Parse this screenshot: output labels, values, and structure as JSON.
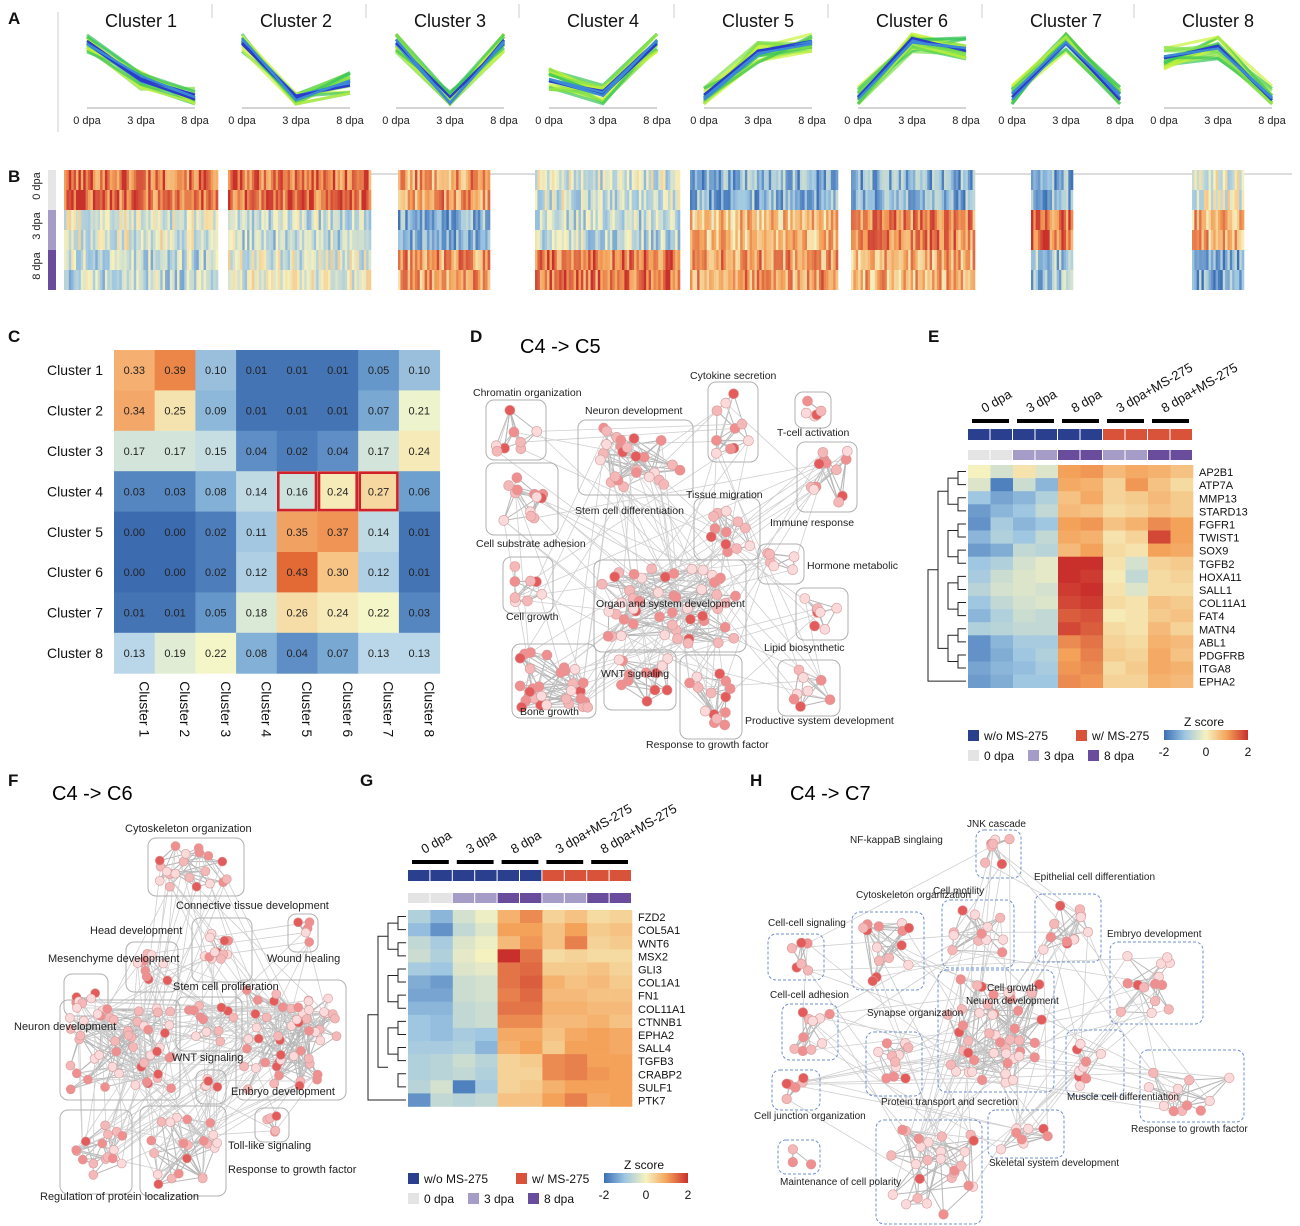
{
  "panel_letters": {
    "A": "A",
    "B": "B",
    "C": "C",
    "D": "D",
    "E": "E",
    "F": "F",
    "G": "G",
    "H": "H"
  },
  "panelA": {
    "timepoints": [
      "0 dpa",
      "3 dpa",
      "8 dpa"
    ],
    "clusters": [
      {
        "name": "Cluster 1",
        "profile": [
          0.9,
          0.35,
          0.1
        ]
      },
      {
        "name": "Cluster 2",
        "profile": [
          0.9,
          0.1,
          0.3
        ]
      },
      {
        "name": "Cluster 3",
        "profile": [
          0.9,
          0.05,
          0.9
        ]
      },
      {
        "name": "Cluster 4",
        "profile": [
          0.35,
          0.15,
          0.9
        ]
      },
      {
        "name": "Cluster 5",
        "profile": [
          0.1,
          0.75,
          0.9
        ]
      },
      {
        "name": "Cluster 6",
        "profile": [
          0.1,
          0.9,
          0.8
        ]
      },
      {
        "name": "Cluster 7",
        "profile": [
          0.1,
          0.9,
          0.1
        ]
      },
      {
        "name": "Cluster 8",
        "profile": [
          0.65,
          0.8,
          0.1
        ]
      }
    ]
  },
  "panelB": {
    "row_labels": [
      "0 dpa",
      "3 dpa",
      "8 dpa"
    ],
    "row_colors": [
      "#e6e6e6",
      "#a59cc8",
      "#6a4c9c"
    ]
  },
  "chart_data": [
    {
      "type": "heatmap",
      "title": "",
      "rows": [
        "Cluster 1",
        "Cluster 2",
        "Cluster 3",
        "Cluster 4",
        "Cluster 5",
        "Cluster 6",
        "Cluster 7",
        "Cluster 8"
      ],
      "columns": [
        "Cluster 1",
        "Cluster 2",
        "Cluster 3",
        "Cluster 4",
        "Cluster 5",
        "Cluster 6",
        "Cluster 7",
        "Cluster 8"
      ],
      "values": [
        [
          0.33,
          0.39,
          0.1,
          0.01,
          0.01,
          0.01,
          0.05,
          0.1
        ],
        [
          0.34,
          0.25,
          0.09,
          0.01,
          0.01,
          0.01,
          0.07,
          0.21
        ],
        [
          0.17,
          0.17,
          0.15,
          0.04,
          0.02,
          0.04,
          0.17,
          0.24
        ],
        [
          0.03,
          0.03,
          0.08,
          0.14,
          0.16,
          0.24,
          0.27,
          0.06
        ],
        [
          0.0,
          0.0,
          0.02,
          0.11,
          0.35,
          0.37,
          0.14,
          0.01
        ],
        [
          0.0,
          0.0,
          0.02,
          0.12,
          0.43,
          0.3,
          0.12,
          0.01
        ],
        [
          0.01,
          0.01,
          0.05,
          0.18,
          0.26,
          0.24,
          0.22,
          0.03
        ],
        [
          0.13,
          0.19,
          0.22,
          0.08,
          0.04,
          0.07,
          0.13,
          0.13
        ]
      ],
      "labels": [
        [
          "0.33",
          "0.39",
          "0.10",
          "0.01",
          "0.01",
          "0.01",
          "0.05",
          "0.10"
        ],
        [
          "0.34",
          "0.25",
          "0.09",
          "0.01",
          "0.01",
          "0.01",
          "0.07",
          "0.21"
        ],
        [
          "0.17",
          "0.17",
          "0.15",
          "0.04",
          "0.02",
          "0.04",
          "0.17",
          "0.24"
        ],
        [
          "0.03",
          "0.03",
          "0.08",
          "0.14",
          "0.16",
          "0.24",
          "0.27",
          "0.06"
        ],
        [
          "0.00",
          "0.00",
          "0.02",
          "0.11",
          "0.35",
          "0.37",
          "0.14",
          "0.01"
        ],
        [
          "0.00",
          "0.00",
          "0.02",
          "0.12",
          "0.43",
          "0.30",
          "0.12",
          "0.01"
        ],
        [
          "0.01",
          "0.01",
          "0.05",
          "0.18",
          "0.26",
          "0.24",
          "0.22",
          "0.03"
        ],
        [
          "0.13",
          "0.19",
          "0.22",
          "0.08",
          "0.04",
          "0.07",
          "0.13",
          "0.13"
        ]
      ],
      "highlighted": [
        [
          3,
          4
        ],
        [
          3,
          5
        ],
        [
          3,
          6
        ]
      ]
    }
  ],
  "panelD": {
    "title": "C4 -> C5",
    "labels": [
      "Chromatin organization",
      "Neuron development",
      "Cytokine secretion",
      "T-cell activation",
      "Stem cell differentiation",
      "Tissue migration",
      "Immune response",
      "Cell substrate adhesion",
      "Hormone metabolic",
      "Cell growth",
      "Organ and system development",
      "Lipid biosynthetic",
      "WNT signaling",
      "Bone growth",
      "Productive system development",
      "Response to growth factor"
    ]
  },
  "panelE": {
    "column_groups": [
      "0 dpa",
      "3 dpa",
      "8 dpa",
      "3 dpa+MS-275",
      "8 dpa+MS-275"
    ],
    "genes": [
      "AP2B1",
      "ATP7A",
      "MMP13",
      "STARD13",
      "FGFR1",
      "TWIST1",
      "SOX9",
      "TGFB2",
      "HOXA11",
      "SALL1",
      "COL11A1",
      "FAT4",
      "MATN4",
      "ABL1",
      "PDGFRB",
      "ITGA8",
      "EPHA2"
    ],
    "values": [
      [
        0.0,
        -0.4,
        0.2,
        -0.3,
        1.0,
        1.1,
        0.7,
        0.9,
        0.8,
        0.6
      ],
      [
        -0.3,
        -1.8,
        -0.5,
        -1.2,
        0.9,
        0.8,
        0.4,
        1.1,
        0.6,
        0.3
      ],
      [
        -1.0,
        -1.4,
        -1.2,
        -0.8,
        0.6,
        0.9,
        0.4,
        0.5,
        0.7,
        0.5
      ],
      [
        -1.5,
        -1.2,
        -1.0,
        -0.6,
        0.7,
        0.6,
        0.3,
        0.4,
        0.6,
        0.5
      ],
      [
        -1.6,
        -0.9,
        -1.2,
        -1.0,
        1.0,
        1.1,
        0.6,
        0.8,
        1.2,
        1.0
      ],
      [
        -1.2,
        -0.8,
        -1.0,
        -0.6,
        0.9,
        0.8,
        0.2,
        0.4,
        1.8,
        1.0
      ],
      [
        -1.5,
        -1.3,
        -0.6,
        -0.7,
        0.7,
        1.0,
        0.3,
        0.2,
        1.0,
        0.9
      ],
      [
        -1.0,
        -0.8,
        -0.4,
        -0.2,
        2.0,
        2.0,
        0.2,
        -0.4,
        0.4,
        0.5
      ],
      [
        -0.9,
        -0.5,
        -0.3,
        -0.2,
        2.0,
        1.9,
        0.1,
        -0.6,
        0.3,
        0.4
      ],
      [
        -0.7,
        -0.4,
        -0.3,
        -0.4,
        1.9,
        2.0,
        0.2,
        -0.3,
        0.3,
        0.3
      ],
      [
        -1.0,
        -0.6,
        -0.4,
        -0.3,
        1.8,
        1.9,
        0.3,
        0.2,
        0.6,
        0.5
      ],
      [
        -1.2,
        -0.8,
        -0.5,
        -0.6,
        1.6,
        1.7,
        0.1,
        0.2,
        0.5,
        0.6
      ],
      [
        -0.8,
        -0.7,
        -0.6,
        -0.6,
        1.8,
        1.6,
        0.3,
        0.2,
        0.7,
        0.4
      ],
      [
        -1.6,
        -1.2,
        -0.9,
        -0.9,
        1.2,
        1.4,
        0.4,
        0.3,
        0.8,
        0.7
      ],
      [
        -1.6,
        -1.3,
        -1.0,
        -0.8,
        1.0,
        1.3,
        0.5,
        0.4,
        0.9,
        0.6
      ],
      [
        -1.4,
        -1.2,
        -1.1,
        -0.9,
        1.1,
        1.2,
        0.3,
        0.5,
        0.9,
        0.8
      ],
      [
        -1.5,
        -1.3,
        -1.0,
        -1.0,
        1.2,
        1.1,
        0.4,
        0.4,
        0.8,
        0.7
      ]
    ],
    "legend": {
      "without": "w/o MS-275",
      "with": "w/ MS-275",
      "t0": "0 dpa",
      "t3": "3 dpa",
      "t8": "8 dpa",
      "zscore": "Z score",
      "ticks": [
        "-2",
        "0",
        "2"
      ]
    }
  },
  "panelF": {
    "title": "C4 -> C6",
    "labels": [
      "Cytoskeleton organization",
      "Connective tissue development",
      "Head development",
      "Wound healing",
      "Mesenchyme development",
      "Stem cell proliferation",
      "Neuron development",
      "WNT signaling",
      "Embryo development",
      "Toll-like signaling",
      "Response to growth factor",
      "Regulation of protein localization"
    ]
  },
  "panelG": {
    "column_groups": [
      "0 dpa",
      "3 dpa",
      "8 dpa",
      "3 dpa+MS-275",
      "8 dpa+MS-275"
    ],
    "genes": [
      "FZD2",
      "COL5A1",
      "WNT6",
      "MSX2",
      "GLI3",
      "COL1A1",
      "FN1",
      "COL11A1",
      "CTNNB1",
      "EPHA2",
      "SALL4",
      "TGFB3",
      "CRABP2",
      "SULF1",
      "PTK7"
    ],
    "values": [
      [
        -0.8,
        -1.2,
        -0.4,
        -0.1,
        0.8,
        1.2,
        0.4,
        0.6,
        0.3,
        0.4
      ],
      [
        -1.1,
        -1.6,
        -0.6,
        -0.3,
        1.0,
        1.0,
        0.6,
        1.0,
        0.5,
        0.6
      ],
      [
        -0.6,
        -0.9,
        -0.3,
        -0.1,
        0.7,
        1.1,
        0.6,
        1.3,
        0.4,
        0.5
      ],
      [
        -0.5,
        -0.8,
        -0.2,
        0.0,
        2.0,
        1.4,
        0.3,
        0.4,
        0.3,
        0.3
      ],
      [
        -0.9,
        -1.0,
        -0.3,
        -0.2,
        1.4,
        1.5,
        0.5,
        0.5,
        0.6,
        0.4
      ],
      [
        -1.3,
        -1.5,
        -0.5,
        -0.4,
        1.4,
        1.6,
        0.8,
        0.6,
        0.7,
        0.5
      ],
      [
        -1.4,
        -1.4,
        -0.5,
        -0.4,
        1.3,
        1.5,
        0.7,
        0.7,
        0.6,
        0.6
      ],
      [
        -1.2,
        -1.2,
        -0.6,
        -0.5,
        1.4,
        1.4,
        0.8,
        0.8,
        0.7,
        0.7
      ],
      [
        -1.0,
        -1.1,
        -0.6,
        -0.5,
        1.2,
        1.2,
        0.7,
        0.7,
        0.8,
        0.6
      ],
      [
        -1.0,
        -1.1,
        -0.9,
        -1.0,
        0.9,
        0.9,
        0.6,
        0.9,
        1.0,
        0.9
      ],
      [
        -0.9,
        -0.9,
        -0.8,
        -1.2,
        0.8,
        1.0,
        0.5,
        1.0,
        1.0,
        0.9
      ],
      [
        -0.8,
        -0.7,
        -0.5,
        -0.7,
        0.4,
        0.5,
        1.2,
        1.3,
        1.0,
        1.0
      ],
      [
        -0.8,
        -0.7,
        -0.6,
        -0.8,
        0.4,
        0.4,
        1.2,
        1.3,
        1.1,
        1.0
      ],
      [
        -0.7,
        -0.4,
        -1.8,
        -0.9,
        0.4,
        0.5,
        0.8,
        1.0,
        1.0,
        1.0
      ],
      [
        -1.6,
        -0.6,
        -0.7,
        -0.6,
        0.6,
        0.6,
        1.0,
        1.3,
        0.9,
        1.0
      ]
    ],
    "legend": {
      "without": "w/o MS-275",
      "with": "w/ MS-275",
      "t0": "0 dpa",
      "t3": "3 dpa",
      "t8": "8 dpa",
      "zscore": "Z score",
      "ticks": [
        "-2",
        "0",
        "2"
      ]
    }
  },
  "panelH": {
    "title": "C4 -> C7",
    "labels": [
      "NF-kappaB singlaing",
      "JNK cascade",
      "Cytoskeleton organization",
      "Cell motility",
      "Epithelial cell differentiation",
      "Cell-cell signaling",
      "Embryo development",
      "Cell growth",
      "Neuron development",
      "Cell-cell adhesion",
      "Synapse organization",
      "Protein transport and secretion",
      "Muscle cell differentiation",
      "Cell junction organization",
      "Response to growth factor",
      "Skeletal system development",
      "Maintenance of cell polarity"
    ]
  },
  "colors": {
    "blue": "#2b3f8f",
    "red": "#d9533a",
    "light_grey": "#e4e4e4",
    "lavender": "#a59cc8",
    "purple": "#6a4c9c",
    "highlight": "#d0202a"
  }
}
